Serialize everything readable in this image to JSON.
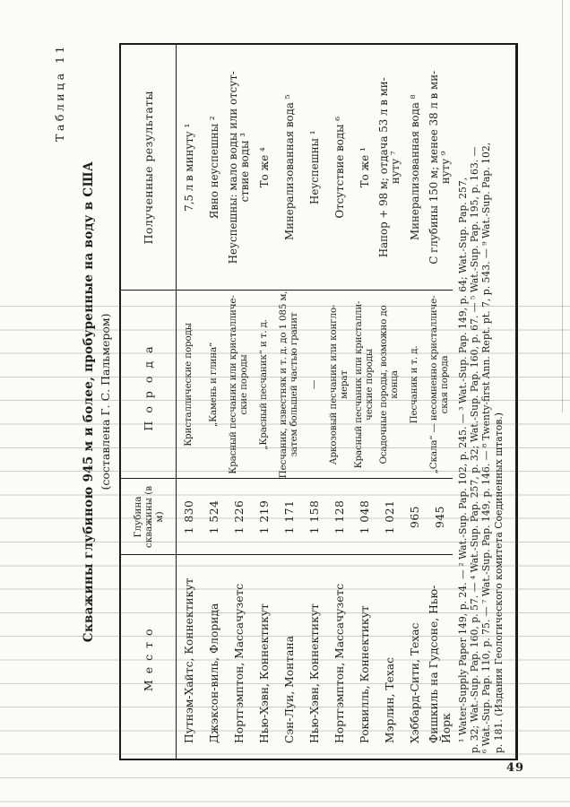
{
  "page": {
    "number": "49"
  },
  "table": {
    "label": "Таблица 11",
    "title": "Скважины глубиною 945 м и более, пробуренные на воду в США",
    "subtitle": "(составлена Г. С. Пальмером)",
    "columns": {
      "place": "Место",
      "depth": "Глубина скважины (в м)",
      "rock": "Порода",
      "result": "Полученные результаты"
    },
    "rows": [
      {
        "place": "Путнэм-Хайтс, Коннектикут",
        "depth": "1 830",
        "rock": "Кристаллические породы",
        "result": "7,5 л в минуту ¹"
      },
      {
        "place": "Джэксон-виль, Флорида",
        "depth": "1 524",
        "rock": "„Камень и глина“",
        "result": "Явно неуспешны ²"
      },
      {
        "place": "Нортгэмптон, Массачузетс",
        "depth": "1 226",
        "rock": "Красный песчаник или кристалличе-\nские породы",
        "result": "Неуспешны: мало воды или отсут-\nствие воды ³"
      },
      {
        "place": "Нью-Хэвн, Коннектикут",
        "depth": "1 219",
        "rock": "„Красный песчаник“ и т. д.",
        "result": "То же ⁴"
      },
      {
        "place": "Сэн-Луи, Монтана",
        "depth": "1 171",
        "rock": "Песчаник, известняк и т. д. до 1 085 м,\nзатем большей частью гранит",
        "result": "Минерализованная вода ⁵"
      },
      {
        "place": "Нью-Хэвн, Коннектикут",
        "depth": "1 158",
        "rock": "—",
        "result": "Неуспешны ¹"
      },
      {
        "place": "Нортгэмптон, Массачузетс",
        "depth": "1 128",
        "rock": "Аркозовый песчаник или конгло-\nмерат",
        "result": "Отсутствие воды ⁶"
      },
      {
        "place": "Роквилль, Коннектикут",
        "depth": "1 048",
        "rock": "Красный песчаник или кристалли-\nческие породы",
        "result": "То же ¹"
      },
      {
        "place": "Мэрлин, Техас",
        "depth": "1 021",
        "rock": "Осадочные породы, возможно до\nконца",
        "result": "Напор + 98 м; отдача 53 л в ми-\nнуту ⁷"
      },
      {
        "place": "Хэббард-Сити, Техас",
        "depth": "965",
        "rock": "Песчаник и т. д.",
        "result": "Минерализованная вода ⁸"
      },
      {
        "place": "Фишкиль на Гудсоне, Нью-Йорк",
        "depth": "945",
        "rock": "„Скала“ — несомненно кристалличе-\nская порода",
        "result": "С глубины 150 м; менее 38 л в ми-\nнуту ⁹"
      }
    ],
    "footnotes": [
      "¹ Water-Supply Paper 149, p. 24. — ² Wat.-Sup. Pap. 102, p. 245. — ³ Wat.-Sup. Pap. 149, p. 64; Wat.-Sup. Pap. 257,",
      "p. 32; Wat.-Sup. Pap. 160, p. 57. — ⁴ Wat.-Sup. Pap. 257, p. 32; Wat.-Sup. Pap. 160, p. 67. — ⁵ Wat.-Sup. Pap. 195, p. 163. —",
      "⁶ Wat.-Sup. Pap. 110, p. 75. — ⁷ Wat.-Sup. Pap. 149, p. 146. — ⁸ Twenty-first Ann. Rept. pt. 7, p. 543. — ⁹ Wat.-Sup. Pap. 102,",
      "p. 181. (Издания Геологического комитета Соединенных штатов.)"
    ]
  }
}
